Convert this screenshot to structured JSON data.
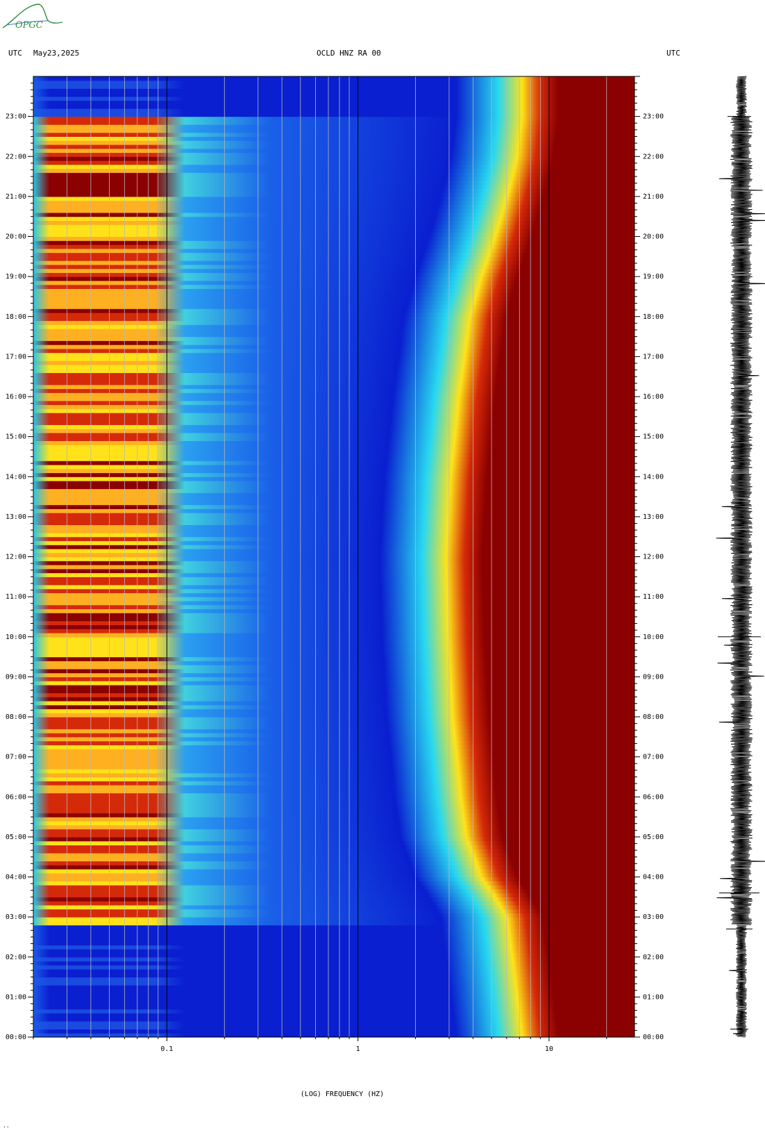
{
  "header": {
    "utc_left": "UTC",
    "date": "May23,2025",
    "station": "OCLD HNZ RA 00",
    "utc_right": "UTC"
  },
  "logo": {
    "text": "OPGC",
    "color": "#2e8b3a"
  },
  "corner_mark": "··",
  "colors": {
    "low": "#0a1fd0",
    "mid": "#28d8f0",
    "high": "#ffe21a",
    "peak": "#8b0000"
  },
  "chart_data": {
    "type": "heatmap",
    "title": "",
    "xlabel": "(LOG) FREQUENCY (HZ)",
    "ylabel": "",
    "x_scale": "log",
    "xlim": [
      0.02,
      28
    ],
    "x_ticks": [
      {
        "value": 0.1,
        "label": "0.1"
      },
      {
        "value": 1,
        "label": "1"
      },
      {
        "value": 10,
        "label": "10"
      }
    ],
    "ylim": [
      "00:00",
      "24:00"
    ],
    "y_ticks": [
      "00:00",
      "01:00",
      "02:00",
      "03:00",
      "04:00",
      "05:00",
      "06:00",
      "07:00",
      "08:00",
      "09:00",
      "10:00",
      "11:00",
      "12:00",
      "13:00",
      "14:00",
      "15:00",
      "16:00",
      "17:00",
      "18:00",
      "19:00",
      "20:00",
      "21:00",
      "22:00",
      "23:00"
    ],
    "y_ticks_right": [
      "00:00",
      "01:00",
      "02:00",
      "03:00",
      "04:00",
      "05:00",
      "06:00",
      "07:00",
      "08:00",
      "09:00",
      "10:00",
      "11:00",
      "12:00",
      "13:00",
      "14:00",
      "15:00",
      "16:00",
      "17:00",
      "18:00",
      "19:00",
      "20:00",
      "21:00",
      "22:00",
      "23:00"
    ],
    "color_scale": [
      "#0a1fd0",
      "#28d8f0",
      "#ffe21a",
      "#d42a0a",
      "#8b0000"
    ],
    "edge_frequency_by_hour": {
      "hours": [
        0,
        2,
        3,
        4,
        5,
        6,
        8,
        10,
        12,
        14,
        16,
        18,
        19,
        20,
        21,
        22,
        23,
        24
      ],
      "hz": [
        9,
        8,
        7.5,
        5.5,
        4.6,
        4.3,
        3.9,
        3.7,
        3.6,
        3.8,
        4.2,
        4.8,
        5.5,
        6.5,
        7.5,
        8.5,
        9,
        9
      ]
    },
    "microseism_active_hours": [
      2.8,
      23
    ]
  },
  "trace": {
    "label": ""
  }
}
